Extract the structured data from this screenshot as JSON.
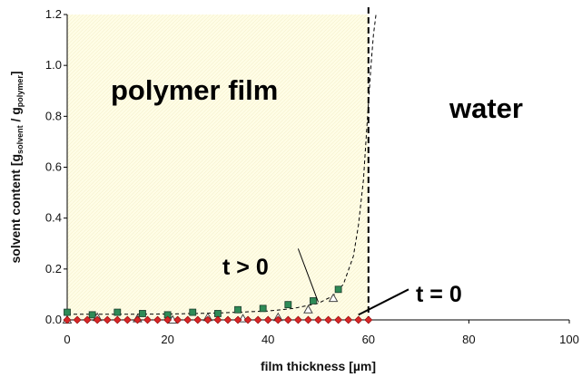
{
  "chart_data": {
    "type": "scatter",
    "title": "",
    "xlabel": "film thickness [µm]",
    "ylabel": "solvent content [g",
    "ylabel_sub1": "solvent",
    "ylabel_mid": " / g",
    "ylabel_sub2": "polymer",
    "ylabel_end": "]",
    "xlim": [
      0,
      100
    ],
    "ylim": [
      0,
      1.2
    ],
    "x_ticks": [
      "0",
      "20",
      "40",
      "60",
      "80",
      "100"
    ],
    "y_ticks": [
      "0.0",
      "0.2",
      "0.4",
      "0.6",
      "0.8",
      "1.0",
      "1.2"
    ],
    "grid": false,
    "regions": [
      {
        "label": "polymer film",
        "x_range": [
          0,
          60
        ],
        "color": "#fffde6"
      },
      {
        "label": "water",
        "x_range": [
          60,
          100
        ],
        "color": "#ffffff"
      }
    ],
    "interface_x": 60,
    "annotations": [
      {
        "text": "t > 0",
        "pointer_from": [
          46,
          0.28
        ],
        "pointer_to": [
          50,
          0.07
        ]
      },
      {
        "text": "t = 0",
        "pointer_from": [
          68,
          0.12
        ],
        "pointer_to": [
          58,
          0.02
        ]
      }
    ],
    "series": [
      {
        "marker": "square",
        "color": "#2e8b57",
        "x": [
          0,
          5,
          10,
          15,
          20,
          25,
          30,
          34,
          39,
          44,
          49,
          54
        ],
        "y": [
          0.03,
          0.02,
          0.03,
          0.025,
          0.02,
          0.03,
          0.025,
          0.04,
          0.045,
          0.06,
          0.075,
          0.12
        ]
      },
      {
        "marker": "triangle",
        "color": "#ffffff",
        "x": [
          0,
          6,
          14,
          21,
          28,
          35,
          42,
          48,
          53
        ],
        "y": [
          0.0,
          0.01,
          0.005,
          0.0,
          0.01,
          0.005,
          0.01,
          0.04,
          0.085
        ]
      },
      {
        "marker": "diamond",
        "color": "#d62728",
        "x": [
          0,
          2,
          4,
          6,
          8,
          10,
          12,
          14,
          16,
          18,
          20,
          22,
          24,
          26,
          28,
          30,
          32,
          34,
          36,
          38,
          40,
          42,
          44,
          46,
          48,
          50,
          52,
          54,
          56,
          58,
          60
        ],
        "y": [
          0,
          0,
          0,
          0,
          0,
          0,
          0,
          0,
          0,
          0,
          0,
          0,
          0,
          0,
          0,
          0,
          0,
          0,
          0,
          0,
          0,
          0,
          0,
          0,
          0,
          0,
          0,
          0,
          0,
          0,
          0
        ]
      }
    ],
    "fit_curve": {
      "style": "dashed",
      "x": [
        0,
        10,
        20,
        30,
        40,
        45,
        50,
        53,
        55,
        57,
        58,
        59,
        59.5,
        60,
        60.5,
        61,
        61.5
      ],
      "y": [
        0.022,
        0.022,
        0.023,
        0.027,
        0.035,
        0.045,
        0.065,
        0.095,
        0.14,
        0.25,
        0.37,
        0.55,
        0.7,
        0.85,
        1.0,
        1.12,
        1.2
      ]
    }
  }
}
